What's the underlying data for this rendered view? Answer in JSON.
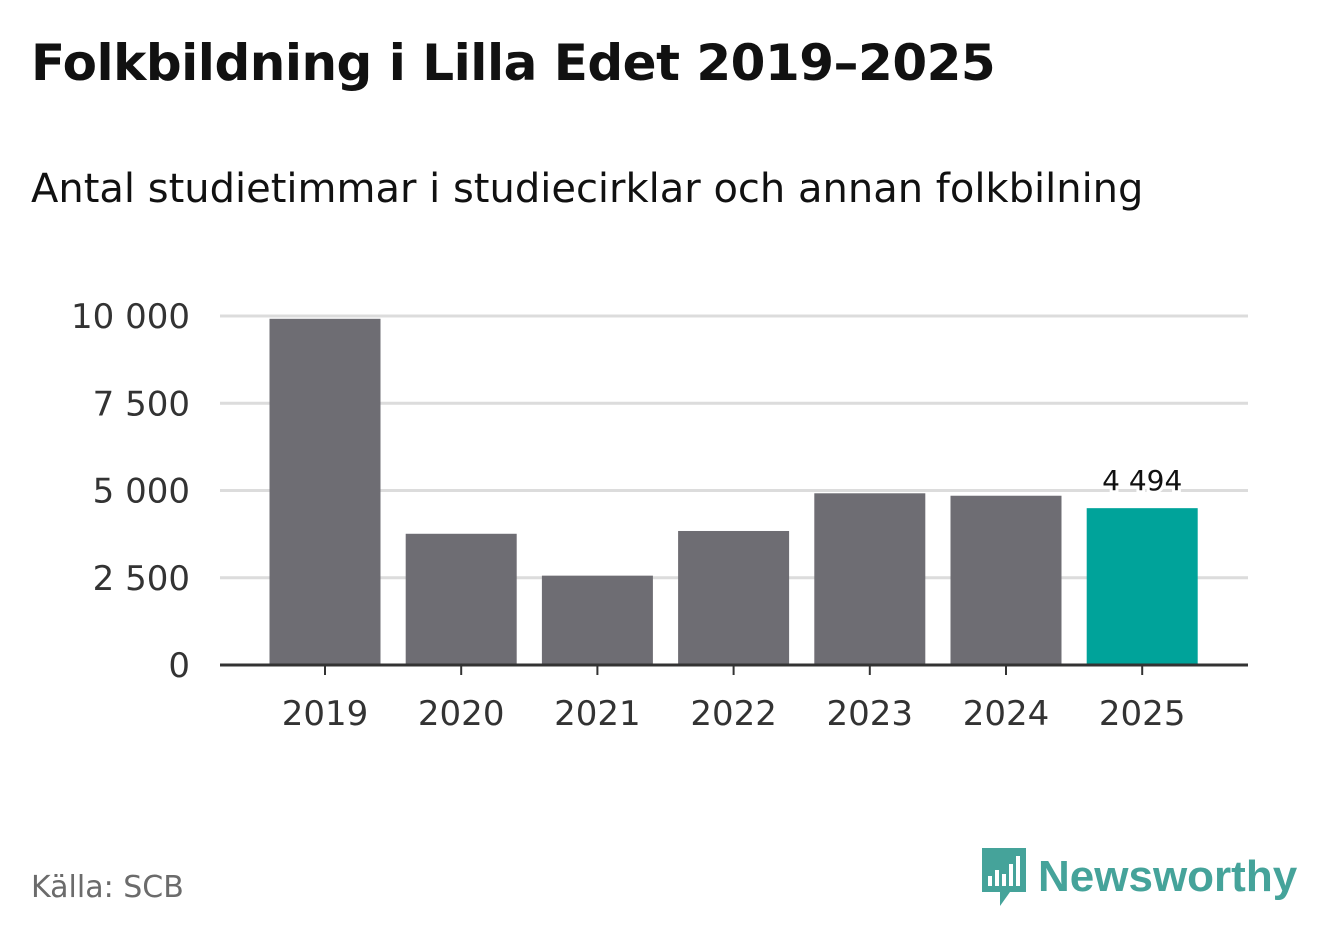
{
  "title": "Folkbildning i Lilla Edet 2019–2025",
  "subtitle": "Antal studietimmar i studiecirklar och annan folkbilning",
  "source": "Källa: SCB",
  "brand": {
    "name": "Newsworthy",
    "icon": "newsworthy-bar-chart-icon"
  },
  "colors": {
    "bar": "#6e6d73",
    "highlight": "#00a39a",
    "grid": "#dcdcdc",
    "axis": "#333333",
    "brand": "#45a39a"
  },
  "chart_data": {
    "type": "bar",
    "categories": [
      "2019",
      "2020",
      "2021",
      "2022",
      "2023",
      "2024",
      "2025"
    ],
    "values": [
      9920,
      3760,
      2560,
      3840,
      4920,
      4850,
      4494
    ],
    "highlight_index": 6,
    "data_labels": [
      "",
      "",
      "",
      "",
      "",
      "",
      "4 494"
    ],
    "ylim": [
      0,
      10000
    ],
    "yticks": [
      0,
      2500,
      5000,
      7500,
      10000
    ],
    "ytick_labels": [
      "0",
      "2 500",
      "5 000",
      "7 500",
      "10 000"
    ],
    "xlabel": "",
    "ylabel": "",
    "grid": true,
    "legend": false
  }
}
